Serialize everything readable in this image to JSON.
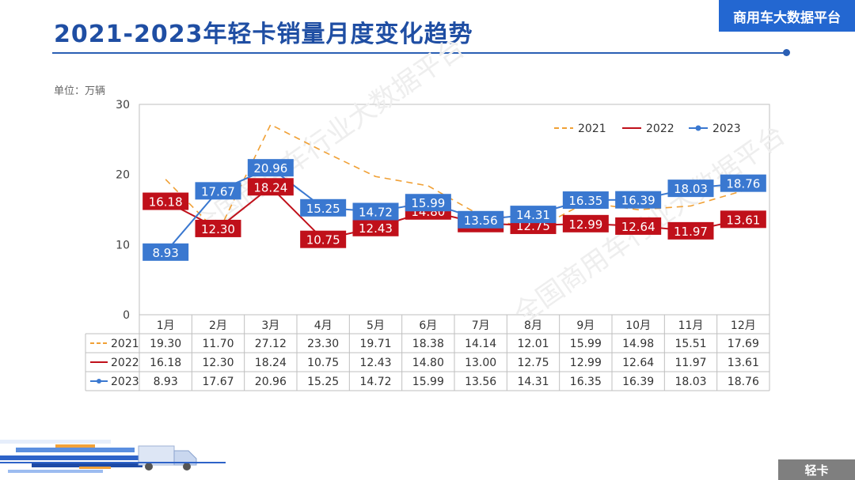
{
  "header": {
    "title": "2021-2023年轻卡销量月度变化趋势",
    "brand": "商用车大数据平台"
  },
  "unit_label": "单位：万辆",
  "watermark": "全国商用车行业大数据平台",
  "corner_label": "轻卡",
  "colors": {
    "s2021": "#f0a035",
    "s2022": "#c0101a",
    "s2023": "#3a78d0",
    "title": "#1f4ea3",
    "brand": "#2367d1"
  },
  "chart_data": {
    "type": "line",
    "categories": [
      "1月",
      "2月",
      "3月",
      "4月",
      "5月",
      "6月",
      "7月",
      "8月",
      "9月",
      "10月",
      "11月",
      "12月"
    ],
    "ylim": [
      0,
      30
    ],
    "yticks": [
      "0",
      "10",
      "20",
      "30"
    ],
    "legend_position": "top-right",
    "series": [
      {
        "name": "2021",
        "style": "dashed",
        "show_labels": false,
        "values": [
          19.3,
          11.7,
          27.12,
          23.3,
          19.71,
          18.38,
          14.14,
          12.01,
          15.99,
          14.98,
          15.51,
          17.69
        ],
        "table": [
          "19.30",
          "11.70",
          "27.12",
          "23.30",
          "19.71",
          "18.38",
          "14.14",
          "12.01",
          "15.99",
          "14.98",
          "15.51",
          "17.69"
        ]
      },
      {
        "name": "2022",
        "style": "solid",
        "show_labels": true,
        "values": [
          16.18,
          12.3,
          18.24,
          10.75,
          12.43,
          14.8,
          13.0,
          12.75,
          12.99,
          12.64,
          11.97,
          13.61
        ],
        "table": [
          "16.18",
          "12.30",
          "18.24",
          "10.75",
          "12.43",
          "14.80",
          "13.00",
          "12.75",
          "12.99",
          "12.64",
          "11.97",
          "13.61"
        ]
      },
      {
        "name": "2023",
        "style": "solid-marker",
        "show_labels": true,
        "values": [
          8.93,
          17.67,
          20.96,
          15.25,
          14.72,
          15.99,
          13.56,
          14.31,
          16.35,
          16.39,
          18.03,
          18.76
        ],
        "table": [
          "8.93",
          "17.67",
          "20.96",
          "15.25",
          "14.72",
          "15.99",
          "13.56",
          "14.31",
          "16.35",
          "16.39",
          "18.03",
          "18.76"
        ]
      }
    ]
  }
}
